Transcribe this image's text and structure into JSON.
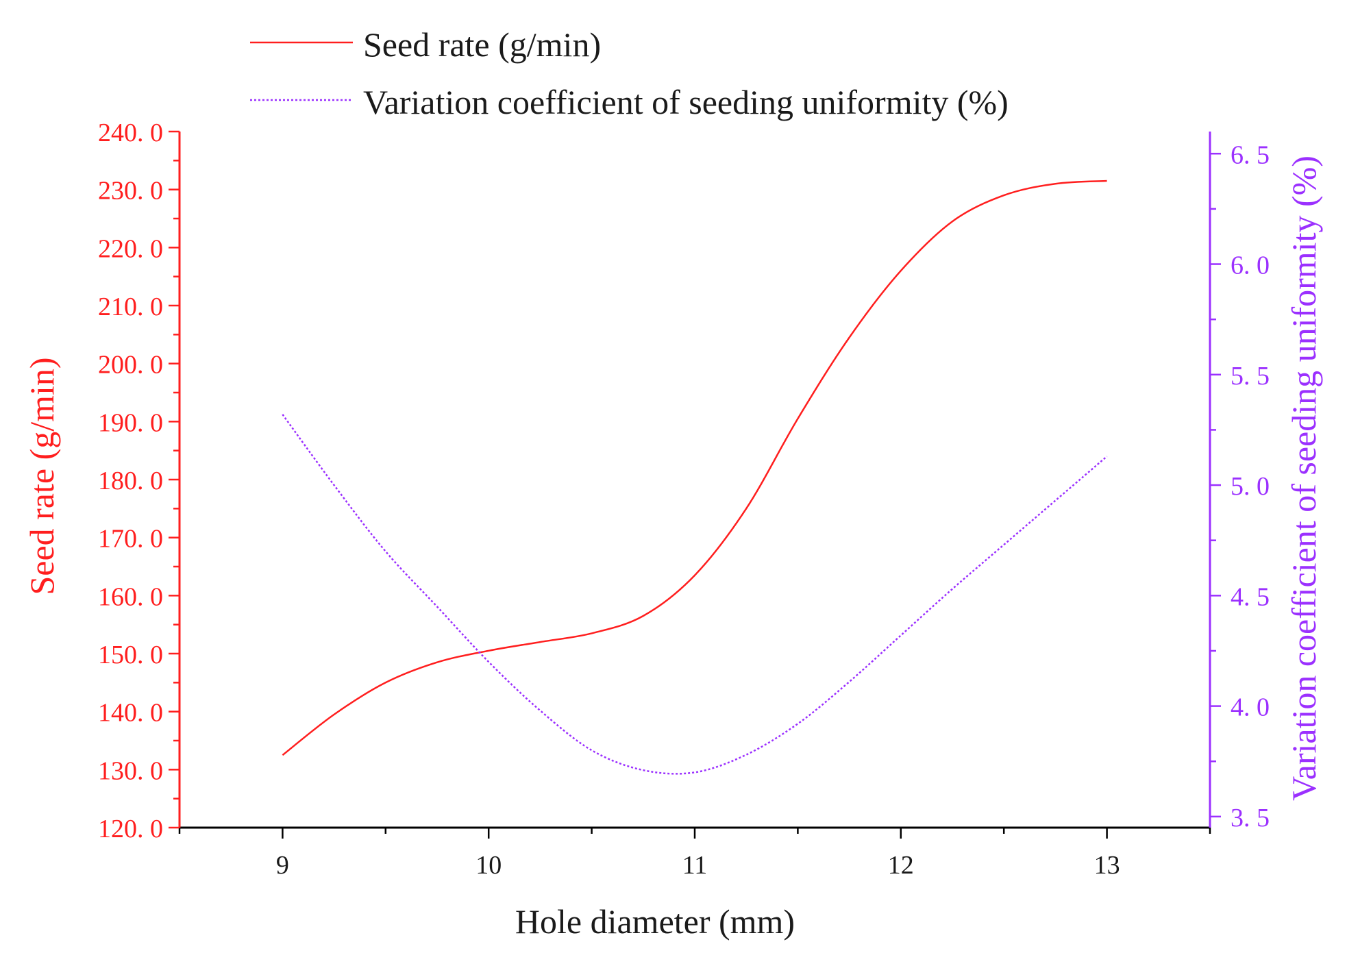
{
  "colors": {
    "left_axis": "#ff1e1e",
    "right_axis": "#9b30ff",
    "axis_dark": "#000000",
    "text_dark": "#1a1a1a"
  },
  "legend": {
    "items": [
      {
        "label": "Seed rate (g/min)",
        "color": "#ff1e1e",
        "style": "solid"
      },
      {
        "label": "Variation coefficient of seeding uniformity (%)",
        "color": "#9b30ff",
        "style": "dotted"
      }
    ]
  },
  "chart_data": {
    "type": "line",
    "title": "",
    "xlabel": "Hole diameter (mm)",
    "ylabel_left": "Seed rate (g/min)",
    "ylabel_right": "Variation coefficient of seeding uniformity (%)",
    "xlim": [
      8.5,
      13.5
    ],
    "ylim_left": [
      120,
      240
    ],
    "ylim_right": [
      3.45,
      6.6
    ],
    "x_ticks": [
      9,
      10,
      11,
      12,
      13
    ],
    "x_tick_labels": [
      "9",
      "10",
      "11",
      "12",
      "13"
    ],
    "y_left_ticks": [
      120,
      130,
      140,
      150,
      160,
      170,
      180,
      190,
      200,
      210,
      220,
      230,
      240
    ],
    "y_left_tick_labels": [
      "120. 0",
      "130. 0",
      "140. 0",
      "150. 0",
      "160. 0",
      "170. 0",
      "180. 0",
      "190. 0",
      "200. 0",
      "210. 0",
      "220. 0",
      "230. 0",
      "240. 0"
    ],
    "y_right_ticks": [
      3.5,
      4.0,
      4.5,
      5.0,
      5.5,
      6.0,
      6.5
    ],
    "y_right_tick_labels": [
      "3. 5",
      "4. 0",
      "4. 5",
      "5. 0",
      "5. 5",
      "6. 0",
      "6. 5"
    ],
    "series": [
      {
        "name": "Seed rate (g/min)",
        "axis": "left",
        "style": "solid",
        "color": "#ff1e1e",
        "x": [
          9.0,
          9.25,
          9.5,
          9.75,
          10.0,
          10.25,
          10.5,
          10.75,
          11.0,
          11.25,
          11.5,
          11.75,
          12.0,
          12.25,
          12.5,
          12.75,
          13.0
        ],
        "values": [
          132.5,
          139.5,
          145.0,
          148.5,
          150.5,
          152.0,
          153.5,
          156.5,
          163.5,
          175.0,
          190.5,
          204.5,
          216.0,
          224.5,
          229.0,
          231.0,
          231.5
        ]
      },
      {
        "name": "Variation coefficient of seeding uniformity (%)",
        "axis": "right",
        "style": "dotted",
        "color": "#9b30ff",
        "x": [
          9.0,
          9.25,
          9.5,
          9.75,
          10.0,
          10.25,
          10.5,
          10.75,
          11.0,
          11.25,
          11.5,
          11.75,
          12.0,
          12.25,
          12.5,
          12.75,
          13.0
        ],
        "values": [
          5.32,
          5.0,
          4.7,
          4.45,
          4.2,
          3.98,
          3.8,
          3.71,
          3.7,
          3.78,
          3.92,
          4.11,
          4.32,
          4.53,
          4.73,
          4.93,
          5.13
        ]
      }
    ]
  }
}
